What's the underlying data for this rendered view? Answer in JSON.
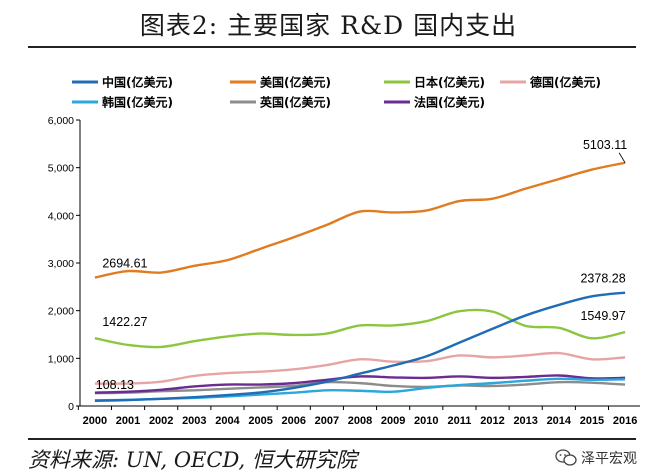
{
  "title": "图表2:   主要国家 R&D 国内支出",
  "source": "资料来源: UN, OECD, 恒大研究院",
  "watermark": "泽平宏观",
  "chart_data": {
    "type": "line",
    "title": "图表2:   主要国家 R&D 国内支出",
    "xlabel": "",
    "ylabel": "",
    "ylim": [
      0,
      6000
    ],
    "yticks": [
      0,
      1000,
      2000,
      3000,
      4000,
      5000,
      6000
    ],
    "ytick_labels": [
      "0",
      "1,000",
      "2,000",
      "3,000",
      "4,000",
      "5,000",
      "6,000"
    ],
    "x": [
      "2000",
      "2001",
      "2002",
      "2003",
      "2004",
      "2005",
      "2006",
      "2007",
      "2008",
      "2009",
      "2010",
      "2011",
      "2012",
      "2013",
      "2014",
      "2015",
      "2016"
    ],
    "legend_position": "top",
    "series": [
      {
        "name": "中国(亿美元)",
        "color": "#1f6db5",
        "values": [
          108.13,
          125,
          150,
          185,
          230,
          285,
          380,
          510,
          680,
          850,
          1040,
          1330,
          1620,
          1900,
          2120,
          2300,
          2378.28
        ]
      },
      {
        "name": "美国(亿美元)",
        "color": "#e07b20",
        "values": [
          2694.61,
          2830,
          2800,
          2940,
          3060,
          3300,
          3540,
          3800,
          4080,
          4060,
          4100,
          4300,
          4350,
          4560,
          4760,
          4960,
          5103.11
        ]
      },
      {
        "name": "日本(亿美元)",
        "color": "#8cc63f",
        "values": [
          1422.27,
          1280,
          1240,
          1360,
          1460,
          1520,
          1490,
          1520,
          1690,
          1690,
          1780,
          1990,
          1980,
          1680,
          1640,
          1420,
          1549.97
        ]
      },
      {
        "name": "德国(亿美元)",
        "color": "#e6a5a5",
        "values": [
          470,
          470,
          510,
          630,
          690,
          720,
          770,
          860,
          980,
          930,
          940,
          1060,
          1020,
          1060,
          1110,
          980,
          1020
        ]
      },
      {
        "name": "韩国(亿美元)",
        "color": "#2aa8dc",
        "values": [
          120,
          130,
          150,
          170,
          200,
          240,
          280,
          330,
          320,
          300,
          380,
          440,
          480,
          530,
          570,
          550,
          560
        ]
      },
      {
        "name": "英国(亿美元)",
        "color": "#8c8c8c",
        "values": [
          270,
          280,
          310,
          330,
          360,
          390,
          420,
          500,
          480,
          420,
          400,
          430,
          420,
          450,
          500,
          490,
          450
        ]
      },
      {
        "name": "法国(亿美元)",
        "color": "#6a2c91",
        "values": [
          280,
          300,
          340,
          410,
          450,
          450,
          480,
          550,
          620,
          600,
          590,
          620,
          590,
          610,
          640,
          580,
          590
        ]
      }
    ],
    "annotations": [
      {
        "text": "5103.11",
        "series": "美国(亿美元)",
        "year": "2016"
      },
      {
        "text": "2694.61",
        "series": "美国(亿美元)",
        "year": "2000"
      },
      {
        "text": "2378.28",
        "series": "中国(亿美元)",
        "year": "2016"
      },
      {
        "text": "1422.27",
        "series": "日本(亿美元)",
        "year": "2000"
      },
      {
        "text": "1549.97",
        "series": "日本(亿美元)",
        "year": "2016"
      },
      {
        "text": "108.13",
        "series": "中国(亿美元)",
        "year": "2000"
      }
    ]
  }
}
